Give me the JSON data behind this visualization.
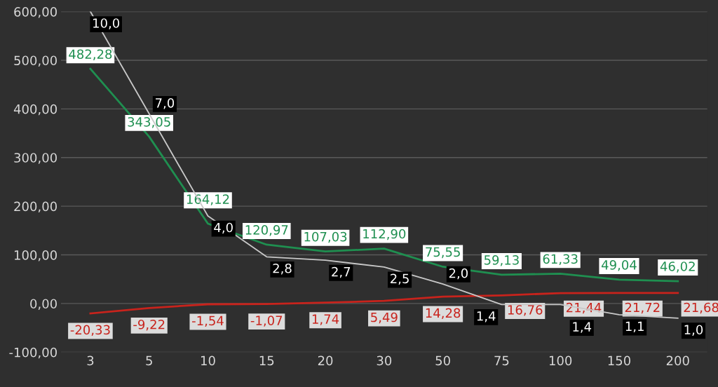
{
  "chart_data": {
    "type": "line",
    "categories": [
      "3",
      "5",
      "10",
      "15",
      "20",
      "30",
      "50",
      "75",
      "100",
      "150",
      "200"
    ],
    "series": [
      {
        "color": "#1f8f50",
        "values": [
          482.28,
          343.05,
          164.12,
          120.97,
          107.03,
          112.9,
          75.55,
          59.13,
          61.33,
          49.04,
          46.02
        ],
        "value_labels": [
          "482,28",
          "343,05",
          "164,12",
          "120,97",
          "107,03",
          "112,90",
          "75,55",
          "59,13",
          "61,33",
          "49,04",
          "46,02"
        ]
      },
      {
        "color": "#c8231c",
        "values": [
          -20.33,
          -9.22,
          -1.54,
          -1.07,
          1.74,
          5.49,
          14.28,
          16.76,
          21.44,
          21.72,
          21.68
        ],
        "value_labels": [
          "-20,33",
          "-9,22",
          "-1,54",
          "-1,07",
          "1,74",
          "5,49",
          "14,28",
          "16,76",
          "21,44",
          "21,72",
          "21,68"
        ]
      },
      {
        "color": "#c8c8c8",
        "axis": "y2",
        "values": [
          10.0,
          7.0,
          4.0,
          2.8,
          2.7,
          2.5,
          2.0,
          1.4,
          1.4,
          1.1,
          1.0
        ],
        "value_labels": [
          "10,0",
          "7,0",
          "4,0",
          "2,8",
          "2,7",
          "2,5",
          "2,0",
          "1,4",
          "1,4",
          "1,1",
          "1,0"
        ]
      }
    ],
    "ylim": [
      -100,
      600
    ],
    "yticks": [
      {
        "value": -100,
        "label": "-100,00"
      },
      {
        "value": 0,
        "label": "0,00"
      },
      {
        "value": 100,
        "label": "100,00"
      },
      {
        "value": 200,
        "label": "200,00"
      },
      {
        "value": 300,
        "label": "300,00"
      },
      {
        "value": 400,
        "label": "400,00"
      },
      {
        "value": 500,
        "label": "500,00"
      },
      {
        "value": 600,
        "label": "600,00"
      }
    ],
    "y2lim": [
      0,
      10
    ],
    "grid": "y",
    "marker": "none",
    "line_style": "solid"
  }
}
